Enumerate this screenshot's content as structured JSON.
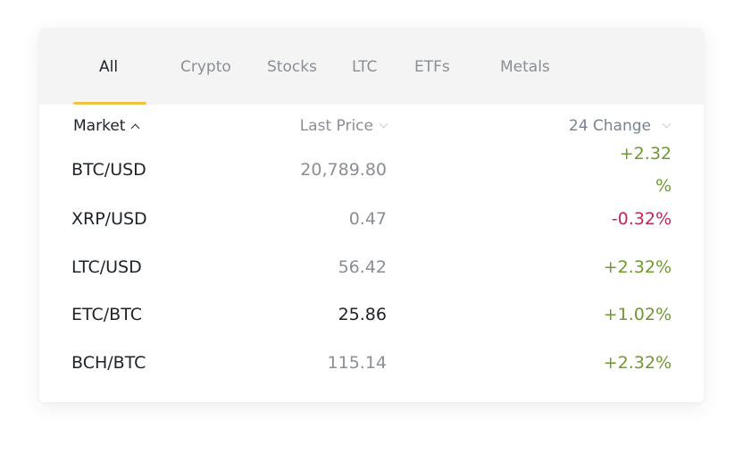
{
  "tabs": [
    {
      "label": "All",
      "active": true
    },
    {
      "label": "Crypto",
      "active": false
    },
    {
      "label": "Stocks",
      "active": false
    },
    {
      "label": "LTC",
      "active": false
    },
    {
      "label": "ETFs",
      "active": false
    },
    {
      "label": "Metals",
      "active": false
    }
  ],
  "columns": {
    "market": "Market",
    "last_price": "Last Price",
    "change": "24 Change"
  },
  "rows": [
    {
      "market": "BTC/USD",
      "last_price": "20,789.80",
      "change": "+2.32 %",
      "trend": "up"
    },
    {
      "market": "XRP/USD",
      "last_price": "0.47",
      "change": "-0.32%",
      "trend": "down"
    },
    {
      "market": "LTC/USD",
      "last_price": "56.42",
      "change": "+2.32%",
      "trend": "up"
    },
    {
      "market": "ETC/BTC",
      "last_price": "25.86",
      "change": "+1.02%",
      "trend": "up"
    },
    {
      "market": "BCH/BTC",
      "last_price": "115.14",
      "change": "+2.32%",
      "trend": "up"
    }
  ],
  "colors": {
    "accent": "#f0c341",
    "positive": "#6f9a2f",
    "negative": "#c2265e",
    "text_primary": "#1e2329",
    "text_muted": "#8a8f96"
  }
}
